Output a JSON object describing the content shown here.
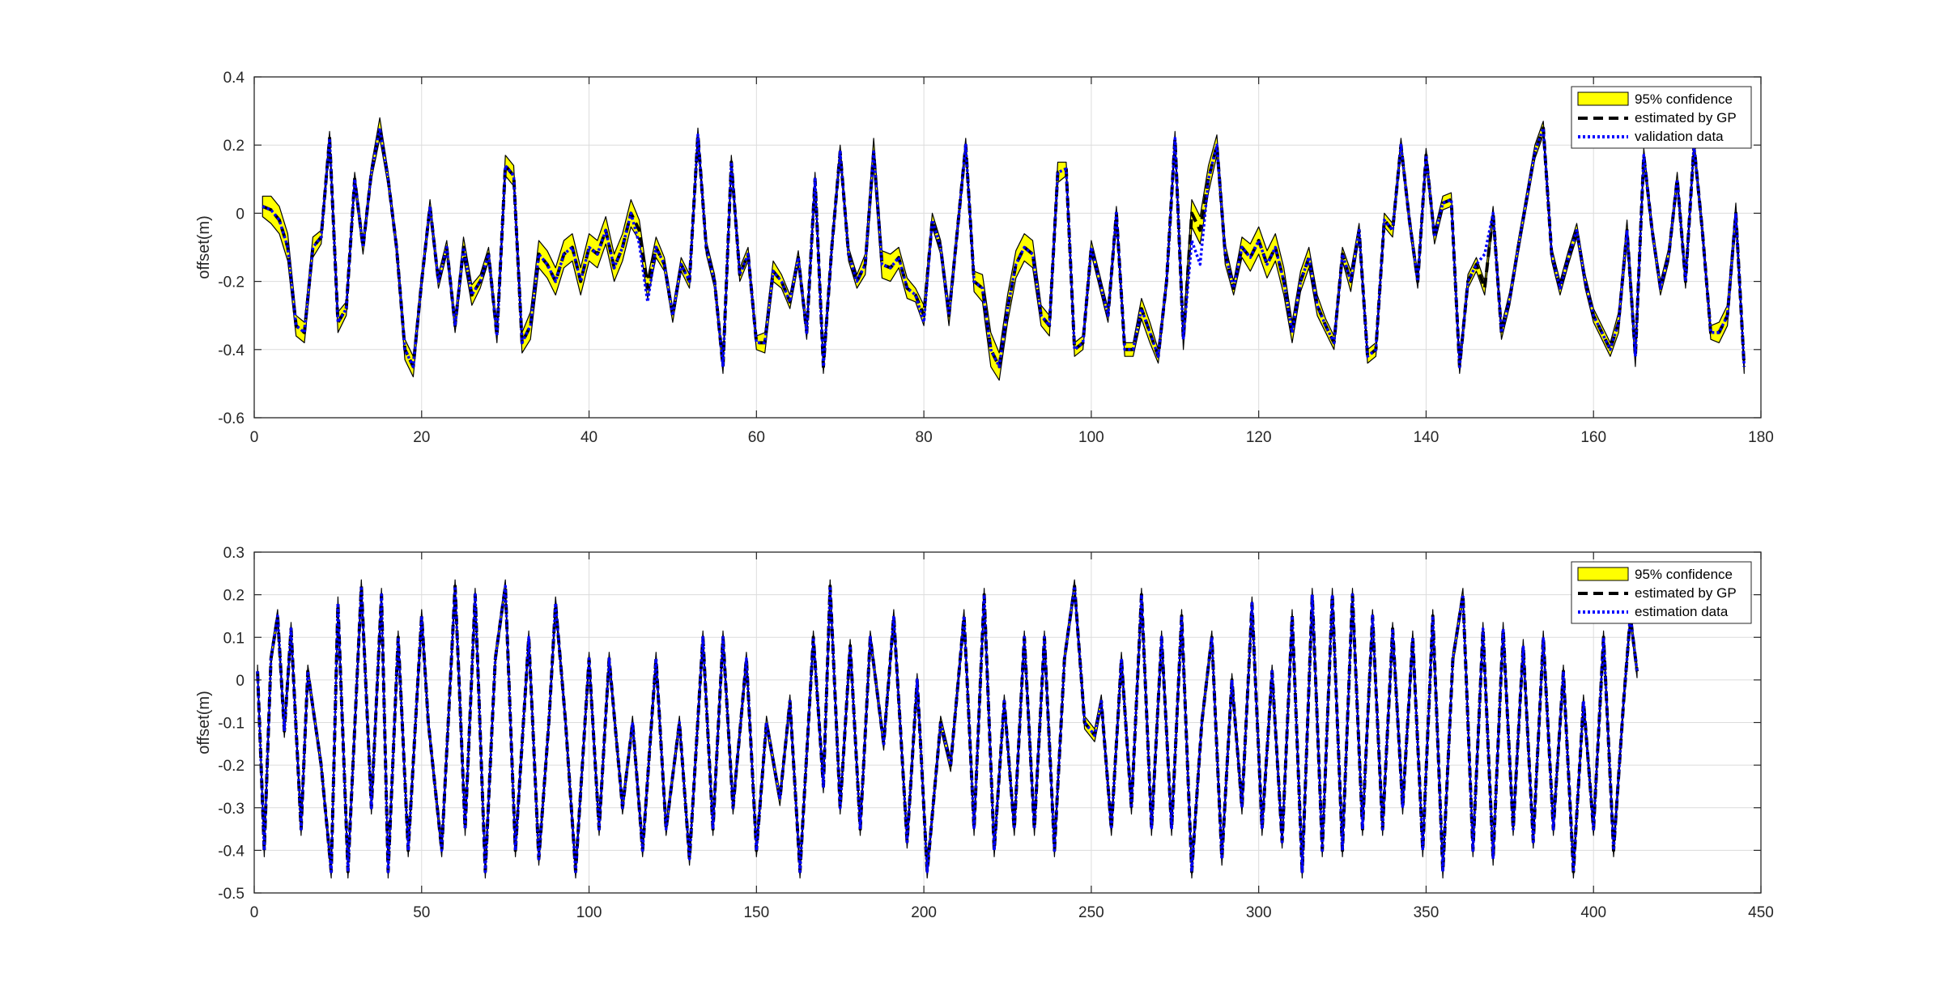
{
  "colors": {
    "band_fill": "#ffff00",
    "band_edge": "#000000",
    "estimate": "#000000",
    "data_line": "#0000ff",
    "grid": "#dcdcdc",
    "axes": "#262626"
  },
  "chart_data": [
    {
      "type": "line",
      "id": "validation",
      "ylabel": "offset(m)",
      "xlabel": "",
      "xlim": [
        0,
        180
      ],
      "ylim": [
        -0.6,
        0.4
      ],
      "xticks": [
        "0",
        "20",
        "40",
        "60",
        "80",
        "100",
        "120",
        "140",
        "160",
        "180"
      ],
      "yticks": [
        "-0.6",
        "-0.4",
        "-0.2",
        "0",
        "0.2",
        "0.4"
      ],
      "grid": true,
      "legend_position": "top-right",
      "legend": [
        "95% confidence",
        "estimated by GP",
        "validation data"
      ],
      "estimated": [
        0.02,
        0.01,
        -0.02,
        -0.1,
        -0.33,
        -0.35,
        -0.1,
        -0.07,
        0.22,
        -0.32,
        -0.28,
        0.1,
        -0.1,
        0.12,
        0.25,
        0.1,
        -0.1,
        -0.4,
        -0.45,
        -0.2,
        0.02,
        -0.2,
        -0.1,
        -0.33,
        -0.1,
        -0.24,
        -0.2,
        -0.12,
        -0.36,
        0.14,
        0.11,
        -0.38,
        -0.33,
        -0.12,
        -0.15,
        -0.2,
        -0.12,
        -0.1,
        -0.2,
        -0.1,
        -0.12,
        -0.05,
        -0.16,
        -0.1,
        0,
        -0.05,
        -0.22,
        -0.1,
        -0.15,
        -0.3,
        -0.15,
        -0.2,
        0.23,
        -0.1,
        -0.2,
        -0.45,
        0.15,
        -0.18,
        -0.12,
        -0.38,
        -0.38,
        -0.17,
        -0.2,
        -0.26,
        -0.13,
        -0.35,
        0.1,
        -0.45,
        -0.1,
        0.18,
        -0.12,
        -0.2,
        -0.15,
        0.18,
        -0.15,
        -0.16,
        -0.13,
        -0.22,
        -0.24,
        -0.3,
        -0.02,
        -0.1,
        -0.3,
        -0.05,
        0.2,
        -0.2,
        -0.22,
        -0.4,
        -0.45,
        -0.28,
        -0.15,
        -0.1,
        -0.12,
        -0.3,
        -0.33,
        0.12,
        0.13,
        -0.4,
        -0.38,
        -0.1,
        -0.2,
        -0.3,
        0,
        -0.4,
        -0.4,
        -0.28,
        -0.35,
        -0.42,
        -0.2,
        0.22,
        -0.37,
        0,
        -0.05,
        0.1,
        0.2,
        -0.12,
        -0.22,
        -0.1,
        -0.13,
        -0.08,
        -0.15,
        -0.1,
        -0.2,
        -0.35,
        -0.2,
        -0.13,
        -0.27,
        -0.33,
        -0.38,
        -0.12,
        -0.2,
        -0.05,
        -0.42,
        -0.4,
        -0.02,
        -0.05,
        0.2,
        -0.02,
        -0.2,
        0.17,
        -0.07,
        0.03,
        0.04,
        -0.45,
        -0.2,
        -0.15,
        -0.22,
        0,
        -0.35,
        -0.25,
        -0.1,
        0.04,
        0.18,
        0.25,
        -0.12,
        -0.22,
        -0.13,
        -0.05,
        -0.2,
        -0.3,
        -0.35,
        -0.4,
        -0.32,
        -0.05,
        -0.42,
        0.17,
        -0.05,
        -0.22,
        -0.12,
        0.1,
        -0.2,
        0.2,
        -0.05,
        -0.35,
        -0.35,
        -0.3,
        0,
        -0.45
      ],
      "band_halfwidth": [
        0.03,
        0.04,
        0.04,
        0.04,
        0.03,
        0.03,
        0.03,
        0.02,
        0.02,
        0.03,
        0.02,
        0.02,
        0.02,
        0.02,
        0.03,
        0.02,
        0.02,
        0.03,
        0.03,
        0.02,
        0.02,
        0.02,
        0.02,
        0.02,
        0.03,
        0.03,
        0.02,
        0.02,
        0.02,
        0.03,
        0.03,
        0.03,
        0.04,
        0.04,
        0.04,
        0.04,
        0.04,
        0.04,
        0.04,
        0.04,
        0.04,
        0.04,
        0.04,
        0.04,
        0.04,
        0.03,
        0.03,
        0.03,
        0.02,
        0.02,
        0.02,
        0.02,
        0.02,
        0.02,
        0.02,
        0.02,
        0.02,
        0.02,
        0.02,
        0.02,
        0.03,
        0.03,
        0.02,
        0.02,
        0.02,
        0.02,
        0.02,
        0.02,
        0.02,
        0.02,
        0.02,
        0.02,
        0.03,
        0.04,
        0.04,
        0.04,
        0.03,
        0.03,
        0.02,
        0.03,
        0.02,
        0.02,
        0.03,
        0.02,
        0.02,
        0.03,
        0.04,
        0.05,
        0.04,
        0.04,
        0.04,
        0.04,
        0.04,
        0.03,
        0.03,
        0.03,
        0.02,
        0.02,
        0.02,
        0.02,
        0.02,
        0.02,
        0.02,
        0.02,
        0.02,
        0.03,
        0.03,
        0.02,
        0.02,
        0.02,
        0.03,
        0.04,
        0.04,
        0.04,
        0.03,
        0.03,
        0.02,
        0.03,
        0.04,
        0.04,
        0.04,
        0.04,
        0.04,
        0.03,
        0.03,
        0.03,
        0.03,
        0.02,
        0.02,
        0.02,
        0.03,
        0.02,
        0.02,
        0.02,
        0.02,
        0.02,
        0.02,
        0.02,
        0.02,
        0.02,
        0.02,
        0.02,
        0.02,
        0.02,
        0.02,
        0.02,
        0.02,
        0.02,
        0.02,
        0.02,
        0.02,
        0.02,
        0.02,
        0.02,
        0.02,
        0.02,
        0.02,
        0.02,
        0.02,
        0.02,
        0.02,
        0.02,
        0.03,
        0.03,
        0.03,
        0.02,
        0.02,
        0.02,
        0.02,
        0.02,
        0.02,
        0.02,
        0.02,
        0.02,
        0.03,
        0.03,
        0.03,
        0.02,
        0.02
      ],
      "data_offsets": [
        0,
        0,
        0,
        0,
        0,
        0,
        0,
        0,
        0,
        0,
        0,
        0,
        0,
        0,
        0,
        0,
        0,
        0,
        0,
        0,
        0,
        0,
        0,
        0,
        0,
        0,
        0,
        0,
        0,
        0,
        0,
        0,
        0,
        0,
        0,
        0,
        0,
        0,
        0,
        0,
        0,
        0,
        0,
        0,
        0,
        -0.04,
        -0.04,
        0,
        0,
        0,
        0,
        0,
        0,
        0,
        0,
        0,
        0,
        0,
        0,
        0,
        0,
        0,
        0,
        0,
        0,
        0,
        0,
        0,
        0,
        0,
        0,
        0,
        0,
        0,
        0,
        0,
        0,
        0,
        0,
        -0.02,
        0,
        0,
        0,
        0,
        0,
        0,
        0,
        0,
        0,
        0,
        0,
        0,
        0,
        0,
        0,
        0,
        0,
        0,
        0,
        0,
        0,
        0,
        0,
        0,
        0,
        0,
        0,
        0,
        0,
        0,
        0,
        -0.08,
        -0.1,
        0,
        0,
        0,
        0,
        0,
        0,
        0,
        0,
        0,
        0,
        0,
        0,
        0,
        0,
        0,
        0,
        0,
        0,
        0,
        0,
        0,
        0,
        0,
        0,
        0,
        0,
        0,
        0,
        0,
        0,
        0,
        0,
        0,
        0.1,
        0,
        0,
        0,
        0,
        0,
        0,
        0,
        0,
        0,
        0,
        0,
        0,
        0,
        0,
        0,
        0,
        0,
        0,
        0,
        0,
        0,
        0,
        0,
        0,
        0,
        0,
        0,
        0,
        0,
        0,
        0,
        0,
        0,
        0
      ]
    },
    {
      "type": "line",
      "id": "estimation",
      "ylabel": "offset(m)",
      "xlabel": "",
      "xlim": [
        0,
        450
      ],
      "ylim": [
        -0.5,
        0.3
      ],
      "xticks": [
        "0",
        "50",
        "100",
        "150",
        "200",
        "250",
        "300",
        "350",
        "400",
        "450"
      ],
      "yticks": [
        "-0.5",
        "-0.4",
        "-0.3",
        "-0.2",
        "-0.1",
        "0",
        "0.1",
        "0.2",
        "0.3"
      ],
      "grid": true,
      "legend_position": "top-right",
      "legend": [
        "95% confidence",
        "estimated by GP",
        "estimation data"
      ],
      "n_points": 413,
      "band_halfwidth": 0.015,
      "estimated_keypoints": [
        [
          1,
          0.02
        ],
        [
          3,
          -0.4
        ],
        [
          5,
          0.05
        ],
        [
          7,
          0.15
        ],
        [
          9,
          -0.12
        ],
        [
          11,
          0.12
        ],
        [
          14,
          -0.35
        ],
        [
          16,
          0.02
        ],
        [
          20,
          -0.2
        ],
        [
          23,
          -0.45
        ],
        [
          25,
          0.18
        ],
        [
          28,
          -0.45
        ],
        [
          32,
          0.22
        ],
        [
          35,
          -0.3
        ],
        [
          38,
          0.2
        ],
        [
          40,
          -0.45
        ],
        [
          43,
          0.1
        ],
        [
          46,
          -0.4
        ],
        [
          50,
          0.15
        ],
        [
          52,
          -0.1
        ],
        [
          56,
          -0.4
        ],
        [
          60,
          0.22
        ],
        [
          63,
          -0.35
        ],
        [
          66,
          0.2
        ],
        [
          69,
          -0.45
        ],
        [
          72,
          0.05
        ],
        [
          75,
          0.22
        ],
        [
          78,
          -0.4
        ],
        [
          82,
          0.1
        ],
        [
          85,
          -0.42
        ],
        [
          88,
          -0.1
        ],
        [
          90,
          0.18
        ],
        [
          93,
          -0.1
        ],
        [
          96,
          -0.45
        ],
        [
          100,
          0.05
        ],
        [
          103,
          -0.35
        ],
        [
          106,
          0.05
        ],
        [
          110,
          -0.3
        ],
        [
          113,
          -0.1
        ],
        [
          116,
          -0.4
        ],
        [
          120,
          0.05
        ],
        [
          123,
          -0.35
        ],
        [
          127,
          -0.1
        ],
        [
          130,
          -0.42
        ],
        [
          134,
          0.1
        ],
        [
          137,
          -0.35
        ],
        [
          140,
          0.1
        ],
        [
          143,
          -0.3
        ],
        [
          147,
          0.05
        ],
        [
          150,
          -0.4
        ],
        [
          153,
          -0.1
        ],
        [
          157,
          -0.28
        ],
        [
          160,
          -0.05
        ],
        [
          163,
          -0.45
        ],
        [
          167,
          0.1
        ],
        [
          170,
          -0.25
        ],
        [
          172,
          0.22
        ],
        [
          175,
          -0.3
        ],
        [
          178,
          0.08
        ],
        [
          181,
          -0.35
        ],
        [
          184,
          0.1
        ],
        [
          188,
          -0.15
        ],
        [
          191,
          0.15
        ],
        [
          195,
          -0.38
        ],
        [
          198,
          0
        ],
        [
          201,
          -0.45
        ],
        [
          205,
          -0.1
        ],
        [
          208,
          -0.2
        ],
        [
          212,
          0.15
        ],
        [
          215,
          -0.35
        ],
        [
          218,
          0.2
        ],
        [
          221,
          -0.4
        ],
        [
          224,
          -0.05
        ],
        [
          227,
          -0.35
        ],
        [
          230,
          0.1
        ],
        [
          233,
          -0.35
        ],
        [
          236,
          0.1
        ],
        [
          239,
          -0.4
        ],
        [
          242,
          0.05
        ],
        [
          245,
          0.22
        ],
        [
          248,
          -0.1
        ],
        [
          251,
          -0.13
        ],
        [
          253,
          -0.05
        ],
        [
          256,
          -0.35
        ],
        [
          259,
          0.05
        ],
        [
          262,
          -0.3
        ],
        [
          265,
          0.2
        ],
        [
          268,
          -0.35
        ],
        [
          271,
          0.1
        ],
        [
          274,
          -0.35
        ],
        [
          277,
          0.15
        ],
        [
          280,
          -0.45
        ],
        [
          283,
          -0.1
        ],
        [
          286,
          0.1
        ],
        [
          289,
          -0.42
        ],
        [
          292,
          0
        ],
        [
          295,
          -0.3
        ],
        [
          298,
          0.18
        ],
        [
          301,
          -0.35
        ],
        [
          304,
          0.02
        ],
        [
          307,
          -0.38
        ],
        [
          310,
          0.15
        ],
        [
          313,
          -0.45
        ],
        [
          316,
          0.2
        ],
        [
          319,
          -0.4
        ],
        [
          322,
          0.2
        ],
        [
          325,
          -0.4
        ],
        [
          328,
          0.2
        ],
        [
          331,
          -0.35
        ],
        [
          334,
          0.15
        ],
        [
          337,
          -0.35
        ],
        [
          340,
          0.12
        ],
        [
          343,
          -0.3
        ],
        [
          346,
          0.1
        ],
        [
          349,
          -0.4
        ],
        [
          352,
          0.15
        ],
        [
          355,
          -0.45
        ],
        [
          358,
          0.05
        ],
        [
          361,
          0.2
        ],
        [
          364,
          -0.4
        ],
        [
          367,
          0.12
        ],
        [
          370,
          -0.42
        ],
        [
          373,
          0.12
        ],
        [
          376,
          -0.35
        ],
        [
          379,
          0.08
        ],
        [
          382,
          -0.38
        ],
        [
          385,
          0.1
        ],
        [
          388,
          -0.35
        ],
        [
          391,
          0.02
        ],
        [
          394,
          -0.45
        ],
        [
          397,
          -0.05
        ],
        [
          400,
          -0.35
        ],
        [
          403,
          0.1
        ],
        [
          406,
          -0.4
        ],
        [
          409,
          -0.05
        ],
        [
          411,
          0.15
        ],
        [
          413,
          0.02
        ]
      ]
    }
  ]
}
